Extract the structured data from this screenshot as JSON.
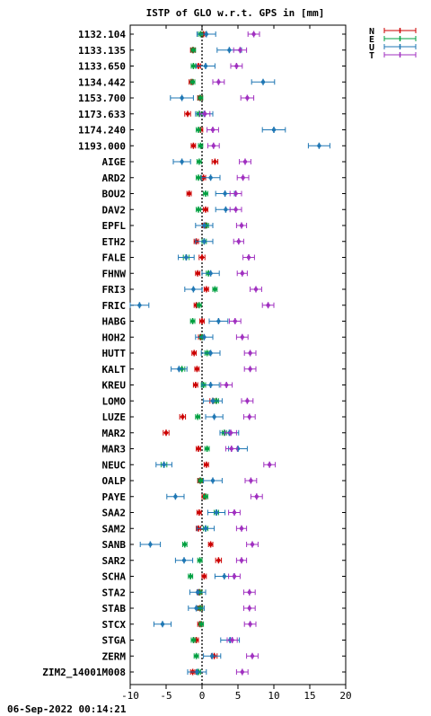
{
  "chart_data": {
    "type": "scatter",
    "title": "ISTP of GLO w.r.t. GPS in [mm]",
    "footer": "06-Sep-2022 00:14:21",
    "xlim": [
      -10,
      20
    ],
    "x_ticks": [
      -10,
      -5,
      0,
      5,
      10,
      15,
      20
    ],
    "zero_line": "dotted",
    "legend_position": "top-right",
    "categories": [
      "1132.104",
      "1133.135",
      "1133.650",
      "1134.442",
      "1153.700",
      "1173.633",
      "1174.240",
      "1193.000",
      "AIGE",
      "ARD2",
      "BOU2",
      "DAV2",
      "EPFL",
      "ETH2",
      "FALE",
      "FHNW",
      "FRI3",
      "FRIC",
      "HABG",
      "HOH2",
      "HUTT",
      "KALT",
      "KREU",
      "LOMO",
      "LUZE",
      "MAR2",
      "MAR3",
      "NEUC",
      "OALP",
      "PAYE",
      "SAA2",
      "SAM2",
      "SANB",
      "SAR2",
      "SCHA",
      "STA2",
      "STAB",
      "STCX",
      "STGA",
      "ZERM",
      "ZIM2_14001M008"
    ],
    "series": [
      {
        "name": "N",
        "color": "#cc0000",
        "values": [
          0.2,
          -1.3,
          -0.5,
          -1.5,
          -0.3,
          -2.0,
          -0.2,
          -1.2,
          1.8,
          0.2,
          -1.8,
          0.5,
          0.4,
          -0.8,
          0.0,
          -0.6,
          0.6,
          -0.8,
          0.0,
          -0.2,
          -1.1,
          -0.7,
          -0.9,
          1.5,
          -2.7,
          -5.0,
          -0.5,
          0.6,
          -0.3,
          0.3,
          -0.4,
          -0.5,
          1.2,
          2.3,
          0.3,
          -0.4,
          -0.3,
          -0.3,
          -0.8,
          1.7,
          -1.3
        ],
        "errors": [
          0.3,
          0.3,
          0.3,
          0.3,
          0.3,
          0.4,
          0.3,
          0.3,
          0.4,
          0.3,
          0.3,
          0.3,
          0.3,
          0.3,
          0.4,
          0.3,
          0.3,
          0.3,
          0.3,
          0.3,
          0.3,
          0.3,
          0.3,
          0.4,
          0.4,
          0.4,
          0.3,
          0.3,
          0.3,
          0.3,
          0.3,
          0.3,
          0.3,
          0.4,
          0.3,
          0.3,
          0.3,
          0.3,
          0.3,
          0.4,
          0.3
        ]
      },
      {
        "name": "E",
        "color": "#00a040",
        "values": [
          -0.2,
          -1.2,
          -1.2,
          -1.3,
          -0.2,
          -0.4,
          -0.5,
          -0.2,
          -0.4,
          -0.5,
          0.5,
          -0.5,
          0.6,
          0.3,
          -2.2,
          0.9,
          1.8,
          -0.4,
          -1.3,
          0.0,
          0.7,
          -2.8,
          0.2,
          2.0,
          -0.6,
          3.1,
          0.7,
          -5.3,
          -0.2,
          0.5,
          2.0,
          0.5,
          -2.4,
          -0.3,
          -1.6,
          -0.3,
          -0.2,
          -0.1,
          -1.2,
          -0.8,
          -0.5
        ],
        "errors": [
          0.3,
          0.3,
          0.3,
          0.3,
          0.3,
          0.3,
          0.3,
          0.3,
          0.3,
          0.3,
          0.3,
          0.3,
          0.3,
          0.3,
          0.4,
          0.3,
          0.3,
          0.3,
          0.3,
          0.3,
          0.3,
          0.4,
          0.3,
          0.3,
          0.3,
          0.3,
          0.3,
          0.4,
          0.3,
          0.3,
          0.3,
          0.3,
          0.3,
          0.3,
          0.3,
          0.3,
          0.3,
          0.3,
          0.3,
          0.3,
          0.3
        ]
      },
      {
        "name": "U",
        "color": "#1f77b4",
        "values": [
          0.6,
          3.8,
          0.5,
          8.5,
          -2.8,
          0.3,
          10.0,
          16.3,
          -2.8,
          1.2,
          3.2,
          3.3,
          0.3,
          0.3,
          -2.2,
          1.2,
          -1.2,
          -8.7,
          2.3,
          0.3,
          1.2,
          -3.2,
          1.2,
          1.5,
          1.7,
          3.8,
          5.0,
          -5.3,
          1.5,
          -3.7,
          2.0,
          0.5,
          -7.2,
          -2.5,
          3.1,
          -0.6,
          -0.8,
          -5.5,
          3.9,
          1.4,
          -0.7
        ],
        "errors": [
          1.3,
          1.7,
          1.3,
          1.6,
          1.6,
          1.2,
          1.6,
          1.5,
          1.2,
          1.3,
          1.3,
          1.4,
          1.2,
          1.2,
          1.1,
          1.2,
          1.2,
          1.3,
          1.3,
          1.2,
          1.3,
          1.1,
          1.2,
          1.3,
          1.2,
          1.3,
          1.3,
          1.1,
          1.3,
          1.2,
          1.2,
          1.2,
          1.4,
          1.2,
          1.3,
          1.1,
          1.1,
          1.2,
          1.3,
          1.2,
          1.3
        ]
      },
      {
        "name": "T",
        "color": "#a030c0",
        "values": [
          7.2,
          5.3,
          4.8,
          2.3,
          6.3,
          0.4,
          1.5,
          1.6,
          6.0,
          5.7,
          4.7,
          4.7,
          5.5,
          5.1,
          6.5,
          5.6,
          7.5,
          9.2,
          4.6,
          5.6,
          6.7,
          6.7,
          3.4,
          6.3,
          6.6,
          4.0,
          4.1,
          9.4,
          6.8,
          7.6,
          4.5,
          5.5,
          7.0,
          5.5,
          4.5,
          6.6,
          6.6,
          6.7,
          4.2,
          7.0,
          5.6
        ],
        "errors": [
          0.8,
          0.9,
          0.8,
          0.8,
          0.9,
          0.7,
          0.8,
          0.8,
          0.8,
          0.8,
          0.8,
          0.8,
          0.7,
          0.7,
          0.8,
          0.7,
          0.8,
          0.8,
          0.8,
          0.8,
          0.8,
          0.8,
          0.8,
          0.8,
          0.8,
          0.8,
          0.8,
          0.8,
          0.8,
          0.8,
          0.8,
          0.7,
          0.8,
          0.7,
          0.8,
          0.8,
          0.8,
          0.8,
          0.7,
          0.8,
          0.8
        ]
      }
    ]
  }
}
